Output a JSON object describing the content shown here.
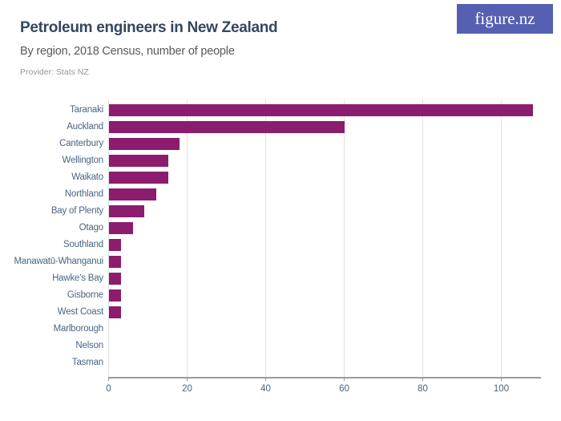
{
  "header": {
    "title": "Petroleum engineers in New Zealand",
    "subtitle": "By region, 2018 Census, number of people",
    "provider": "Provider: Stats NZ",
    "logo_text": "figure.nz"
  },
  "colors": {
    "bar": "#8c1c6e",
    "logo_bg": "#5560b2",
    "title": "#33475f",
    "subtitle": "#58595b",
    "provider": "#949699",
    "axis_label": "#4a6482",
    "gridline": "#e0e0e0",
    "axis_line": "#9a9a9a"
  },
  "chart_data": {
    "type": "bar",
    "orientation": "horizontal",
    "title": "Petroleum engineers in New Zealand",
    "subtitle": "By region, 2018 Census, number of people",
    "xlabel": "",
    "ylabel": "",
    "categories": [
      "Taranaki",
      "Auckland",
      "Canterbury",
      "Wellington",
      "Waikato",
      "Northland",
      "Bay of Plenty",
      "Otago",
      "Southland",
      "Manawatū-Whanganui",
      "Hawke's Bay",
      "Gisborne",
      "West Coast",
      "Marlborough",
      "Nelson",
      "Tasman"
    ],
    "values": [
      108,
      60,
      18,
      15,
      15,
      12,
      9,
      6,
      3,
      3,
      3,
      3,
      3,
      0,
      0,
      0
    ],
    "xlim": [
      0,
      110
    ],
    "xticks": [
      0,
      20,
      40,
      60,
      80,
      100
    ],
    "grid": true,
    "legend": false
  }
}
